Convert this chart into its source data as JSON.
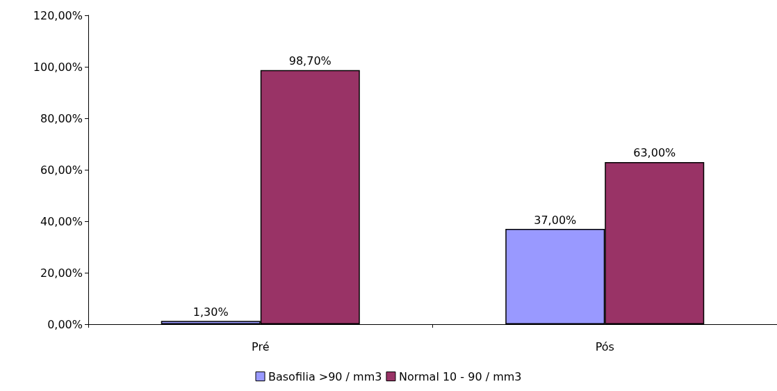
{
  "chart_data": {
    "type": "bar",
    "categories": [
      "Pré",
      "Pós"
    ],
    "series": [
      {
        "name": "Basofilia >90 / mm3",
        "color": "#9999ff",
        "values": [
          1.3,
          37
        ],
        "value_labels": [
          "1,30%",
          "37,00%"
        ]
      },
      {
        "name": "Normal 10 - 90 / mm3",
        "color": "#993366",
        "values": [
          98.7,
          63
        ],
        "value_labels": [
          "98,70%",
          "63,00%"
        ]
      }
    ],
    "ylim": [
      0,
      120
    ],
    "yticks": [
      {
        "value": 0,
        "label": "0,00%"
      },
      {
        "value": 20,
        "label": "20,00%"
      },
      {
        "value": 40,
        "label": "40,00%"
      },
      {
        "value": 60,
        "label": "60,00%"
      },
      {
        "value": 80,
        "label": "80,00%"
      },
      {
        "value": 100,
        "label": "100,00%"
      },
      {
        "value": 120,
        "label": "120,00%"
      }
    ],
    "grid": false,
    "legend": "bottom"
  }
}
